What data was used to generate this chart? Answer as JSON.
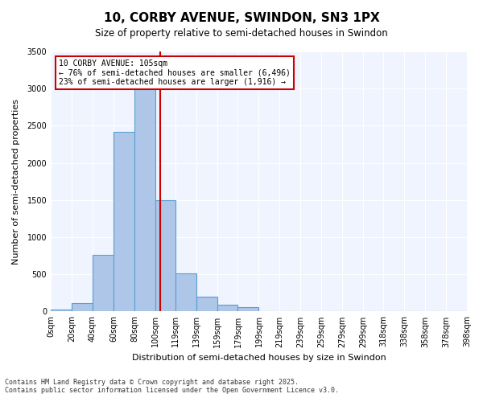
{
  "title1": "10, CORBY AVENUE, SWINDON, SN3 1PX",
  "title2": "Size of property relative to semi-detached houses in Swindon",
  "xlabel": "Distribution of semi-detached houses by size in Swindon",
  "ylabel": "Number of semi-detached properties",
  "annotation_title": "10 CORBY AVENUE: 105sqm",
  "annotation_line1": "← 76% of semi-detached houses are smaller (6,496)",
  "annotation_line2": "23% of semi-detached houses are larger (1,916) →",
  "footer1": "Contains HM Land Registry data © Crown copyright and database right 2025.",
  "footer2": "Contains public sector information licensed under the Open Government Licence v3.0.",
  "property_size": 105,
  "bin_edges": [
    0,
    20,
    40,
    60,
    80,
    100,
    119,
    139,
    159,
    179,
    199,
    219,
    239,
    259,
    279,
    299,
    318,
    338,
    358,
    378,
    398
  ],
  "bin_counts": [
    30,
    110,
    760,
    2420,
    3050,
    1500,
    510,
    200,
    90,
    55,
    0,
    0,
    0,
    0,
    0,
    0,
    0,
    0,
    0,
    0
  ],
  "bar_color": "#aec6e8",
  "bar_edge_color": "#5a9fd4",
  "vline_color": "#cc0000",
  "background_color": "#f0f4ff",
  "ylim": [
    0,
    3500
  ],
  "tick_labels": [
    "0sqm",
    "20sqm",
    "40sqm",
    "60sqm",
    "80sqm",
    "100sqm",
    "119sqm",
    "139sqm",
    "159sqm",
    "179sqm",
    "199sqm",
    "219sqm",
    "239sqm",
    "259sqm",
    "279sqm",
    "299sqm",
    "318sqm",
    "338sqm",
    "358sqm",
    "378sqm",
    "398sqm"
  ]
}
